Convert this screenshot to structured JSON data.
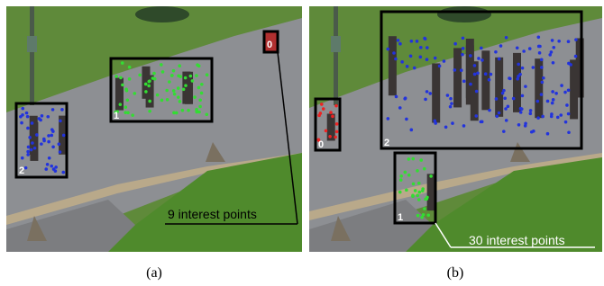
{
  "panels": [
    {
      "caption": "(a)",
      "annotation": "9 interest points",
      "boxes": [
        {
          "label": "1"
        },
        {
          "label": "2"
        },
        {
          "label": "0"
        }
      ]
    },
    {
      "caption": "(b)",
      "annotation": "30 interest points",
      "boxes": [
        {
          "label": "2"
        },
        {
          "label": "0"
        },
        {
          "label": "1"
        }
      ]
    }
  ]
}
